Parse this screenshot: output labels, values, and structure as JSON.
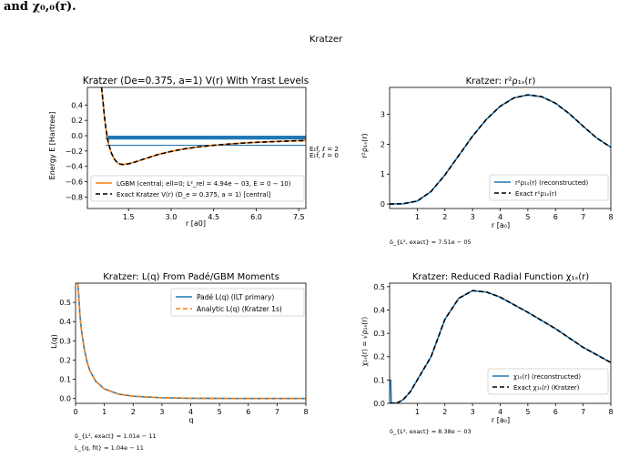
{
  "page": {
    "caption_text": "and χ₀,₀(r)."
  },
  "figure": {
    "suptitle": "Kratzer"
  },
  "colors": {
    "series_blue": "#1f77b4",
    "series_orange": "#ff7f0e",
    "exact_black": "#000000"
  },
  "chart_data": [
    {
      "id": "potential",
      "type": "line",
      "title": "Kratzer (De=0.375, a=1) V(r) With Yrast Levels",
      "xlabel": "r [a0]",
      "ylabel": "Energy  E [Hartree]",
      "xlim": [
        0.05,
        7.75
      ],
      "ylim": [
        -0.95,
        0.63
      ],
      "xticks": [
        1.5,
        3.0,
        4.5,
        6.0,
        7.5
      ],
      "xtick_labels": [
        "1.5",
        "3.0",
        "4.5",
        "6.0",
        "7.5"
      ],
      "yticks": [
        -0.8,
        -0.6,
        -0.4,
        -0.2,
        0.0,
        0.2,
        0.4
      ],
      "ytick_labels": [
        "−0.8",
        "−0.6",
        "−0.4",
        "−0.2",
        "0.0",
        "0.2",
        "0.4"
      ],
      "series": [
        {
          "name": "LGBM (central; ell=0; L²_rel = 4.94e − 03, E = 0 − 10)",
          "color": "#ff7f0e",
          "style": "solid",
          "points": [
            [
              0.55,
              0.63
            ],
            [
              0.6,
              0.45
            ],
            [
              0.65,
              0.25
            ],
            [
              0.7,
              0.1
            ],
            [
              0.75,
              -0.02
            ],
            [
              0.8,
              -0.11
            ],
            [
              0.9,
              -0.23
            ],
            [
              1.0,
              -0.305
            ],
            [
              1.1,
              -0.35
            ],
            [
              1.2,
              -0.37
            ],
            [
              1.3,
              -0.376
            ],
            [
              1.5,
              -0.367
            ],
            [
              1.8,
              -0.335
            ],
            [
              2.0,
              -0.31
            ],
            [
              2.5,
              -0.25
            ],
            [
              3.0,
              -0.205
            ],
            [
              3.5,
              -0.17
            ],
            [
              4.0,
              -0.145
            ],
            [
              4.5,
              -0.125
            ],
            [
              5.0,
              -0.11
            ],
            [
              5.5,
              -0.097
            ],
            [
              6.0,
              -0.087
            ],
            [
              6.5,
              -0.079
            ],
            [
              7.0,
              -0.072
            ],
            [
              7.75,
              -0.063
            ]
          ]
        },
        {
          "name": "Exact Kratzer V(r) (D_e = 0.375, a = 1) [central]",
          "color": "#000000",
          "style": "dashed",
          "points": [
            [
              0.55,
              0.63
            ],
            [
              0.6,
              0.45
            ],
            [
              0.65,
              0.25
            ],
            [
              0.7,
              0.1
            ],
            [
              0.75,
              -0.02
            ],
            [
              0.8,
              -0.11
            ],
            [
              0.9,
              -0.23
            ],
            [
              1.0,
              -0.305
            ],
            [
              1.1,
              -0.35
            ],
            [
              1.2,
              -0.37
            ],
            [
              1.3,
              -0.376
            ],
            [
              1.5,
              -0.367
            ],
            [
              1.8,
              -0.335
            ],
            [
              2.0,
              -0.31
            ],
            [
              2.5,
              -0.25
            ],
            [
              3.0,
              -0.205
            ],
            [
              3.5,
              -0.17
            ],
            [
              4.0,
              -0.145
            ],
            [
              4.5,
              -0.125
            ],
            [
              5.0,
              -0.11
            ],
            [
              5.5,
              -0.097
            ],
            [
              6.0,
              -0.087
            ],
            [
              6.5,
              -0.079
            ],
            [
              7.0,
              -0.072
            ],
            [
              7.75,
              -0.063
            ]
          ]
        }
      ],
      "levels": {
        "color": "#1f77b4",
        "band_from": -0.05,
        "band_to": 0.0,
        "ground": -0.125,
        "x_from": 0.7,
        "x_to": 7.75
      },
      "level_labels": [
        "E₁f,  ℓ = 2",
        "E₁f,  ℓ = 0"
      ],
      "legend": "lower right"
    },
    {
      "id": "density",
      "type": "line",
      "title": "Kratzer: r²ρ₁ₛ(r)",
      "xlabel": "r [a₀]",
      "ylabel": "r²ρ₁ₛ(r)",
      "xlim": [
        0.0,
        8.0
      ],
      "ylim": [
        -0.15,
        3.9
      ],
      "xticks": [
        1,
        2,
        3,
        4,
        5,
        6,
        7,
        8
      ],
      "xtick_labels": [
        "1",
        "2",
        "3",
        "4",
        "5",
        "6",
        "7",
        "8"
      ],
      "yticks": [
        0,
        1,
        2,
        3
      ],
      "ytick_labels": [
        "0",
        "1",
        "2",
        "3"
      ],
      "series": [
        {
          "name": "r²ρ₁ₛ(r) (reconstructed)",
          "color": "#1f77b4",
          "style": "solid",
          "points": [
            [
              0.0,
              0.0
            ],
            [
              0.5,
              0.01
            ],
            [
              1.0,
              0.1
            ],
            [
              1.5,
              0.42
            ],
            [
              2.0,
              0.97
            ],
            [
              2.5,
              1.62
            ],
            [
              3.0,
              2.27
            ],
            [
              3.5,
              2.83
            ],
            [
              4.0,
              3.27
            ],
            [
              4.5,
              3.55
            ],
            [
              5.0,
              3.65
            ],
            [
              5.5,
              3.59
            ],
            [
              6.0,
              3.37
            ],
            [
              6.5,
              3.02
            ],
            [
              7.0,
              2.6
            ],
            [
              7.5,
              2.2
            ],
            [
              8.0,
              1.9
            ]
          ]
        },
        {
          "name": "Exact r²ρ₁ₛ(r)",
          "color": "#000000",
          "style": "dashed",
          "points": [
            [
              0.0,
              0.0
            ],
            [
              0.5,
              0.01
            ],
            [
              1.0,
              0.1
            ],
            [
              1.5,
              0.42
            ],
            [
              2.0,
              0.97
            ],
            [
              2.5,
              1.62
            ],
            [
              3.0,
              2.27
            ],
            [
              3.5,
              2.83
            ],
            [
              4.0,
              3.27
            ],
            [
              4.5,
              3.55
            ],
            [
              5.0,
              3.65
            ],
            [
              5.5,
              3.59
            ],
            [
              6.0,
              3.37
            ],
            [
              6.5,
              3.02
            ],
            [
              7.0,
              2.6
            ],
            [
              7.5,
              2.2
            ],
            [
              8.0,
              1.9
            ]
          ]
        }
      ],
      "legend": "lower right",
      "annotations": [
        "δ_{L², exact} = 7.51e − 05"
      ]
    },
    {
      "id": "lq",
      "type": "line",
      "title": "Kratzer: L(q) From Padé/GBM Moments",
      "xlabel": "q",
      "ylabel": "L(q)",
      "xlim": [
        0.0,
        8.0
      ],
      "ylim": [
        -0.025,
        0.6
      ],
      "xticks": [
        0,
        1,
        2,
        3,
        4,
        5,
        6,
        7,
        8
      ],
      "xtick_labels": [
        "0",
        "1",
        "2",
        "3",
        "4",
        "5",
        "6",
        "7",
        "8"
      ],
      "yticks": [
        0.0,
        0.1,
        0.2,
        0.3,
        0.4,
        0.5
      ],
      "ytick_labels": [
        "0.0",
        "0.1",
        "0.2",
        "0.3",
        "0.4",
        "0.5"
      ],
      "series": [
        {
          "name": "Padé L(q) (ILT primary)",
          "color": "#1f77b4",
          "style": "solid",
          "points": [
            [
              0.08,
              0.6
            ],
            [
              0.1,
              0.56
            ],
            [
              0.15,
              0.44
            ],
            [
              0.2,
              0.36
            ],
            [
              0.3,
              0.26
            ],
            [
              0.4,
              0.19
            ],
            [
              0.5,
              0.145
            ],
            [
              0.7,
              0.09
            ],
            [
              1.0,
              0.05
            ],
            [
              1.5,
              0.023
            ],
            [
              2.0,
              0.012
            ],
            [
              3.0,
              0.004
            ],
            [
              4.0,
              0.0015
            ],
            [
              5.0,
              0.0006
            ],
            [
              6.0,
              0.0002
            ],
            [
              8.0,
              0.0
            ]
          ]
        },
        {
          "name": "Analytic L(q) (Kratzer 1s)",
          "color": "#ff7f0e",
          "style": "dashed",
          "points": [
            [
              0.08,
              0.6
            ],
            [
              0.1,
              0.56
            ],
            [
              0.15,
              0.44
            ],
            [
              0.2,
              0.36
            ],
            [
              0.3,
              0.26
            ],
            [
              0.4,
              0.19
            ],
            [
              0.5,
              0.145
            ],
            [
              0.7,
              0.09
            ],
            [
              1.0,
              0.05
            ],
            [
              1.5,
              0.023
            ],
            [
              2.0,
              0.012
            ],
            [
              3.0,
              0.004
            ],
            [
              4.0,
              0.0015
            ],
            [
              5.0,
              0.0006
            ],
            [
              6.0,
              0.0002
            ],
            [
              8.0,
              0.0
            ]
          ]
        }
      ],
      "legend": "upper right",
      "annotations": [
        "δ_{L², exact} = 1.01e − 11",
        "L_{q, fit} = 1.04e − 11"
      ]
    },
    {
      "id": "chi",
      "type": "line",
      "title": "Kratzer: Reduced Radial Function χ₁ₛ(r)",
      "xlabel": "r [a₀]",
      "ylabel": "χ₁ₛ(r) = √ρ₁ₛ(r)",
      "xlim": [
        0.0,
        8.0
      ],
      "ylim": [
        0.0,
        0.515
      ],
      "xticks": [
        1,
        2,
        3,
        4,
        5,
        6,
        7,
        8
      ],
      "xtick_labels": [
        "1",
        "2",
        "3",
        "4",
        "5",
        "6",
        "7",
        "8"
      ],
      "yticks": [
        0.0,
        0.1,
        0.2,
        0.3,
        0.4,
        0.5
      ],
      "ytick_labels": [
        "0.0",
        "0.1",
        "0.2",
        "0.3",
        "0.4",
        "0.5"
      ],
      "series": [
        {
          "name": "χ₁ₛ(r) (reconstructed)",
          "color": "#1f77b4",
          "style": "solid",
          "points": [
            [
              0.0,
              0.1
            ],
            [
              0.04,
              0.1
            ],
            [
              0.06,
              0.0
            ],
            [
              0.1,
              0.0
            ],
            [
              0.3,
              0.003
            ],
            [
              0.5,
              0.017
            ],
            [
              0.75,
              0.05
            ],
            [
              1.0,
              0.1
            ],
            [
              1.5,
              0.2
            ],
            [
              2.0,
              0.36
            ],
            [
              2.5,
              0.45
            ],
            [
              3.0,
              0.483
            ],
            [
              3.5,
              0.477
            ],
            [
              4.0,
              0.455
            ],
            [
              5.0,
              0.39
            ],
            [
              6.0,
              0.32
            ],
            [
              7.0,
              0.24
            ],
            [
              8.0,
              0.175
            ]
          ]
        },
        {
          "name": "Exact χ₁ₛ(r) (Kratzer)",
          "color": "#000000",
          "style": "dashed",
          "points": [
            [
              0.0,
              0.0
            ],
            [
              0.3,
              0.003
            ],
            [
              0.5,
              0.017
            ],
            [
              0.75,
              0.05
            ],
            [
              1.0,
              0.1
            ],
            [
              1.5,
              0.2
            ],
            [
              2.0,
              0.36
            ],
            [
              2.5,
              0.45
            ],
            [
              3.0,
              0.483
            ],
            [
              3.5,
              0.477
            ],
            [
              4.0,
              0.455
            ],
            [
              5.0,
              0.39
            ],
            [
              6.0,
              0.32
            ],
            [
              7.0,
              0.24
            ],
            [
              8.0,
              0.175
            ]
          ]
        }
      ],
      "legend": "lower right",
      "annotations": [
        "δ_{L², exact} = 8.38e − 03"
      ]
    }
  ]
}
